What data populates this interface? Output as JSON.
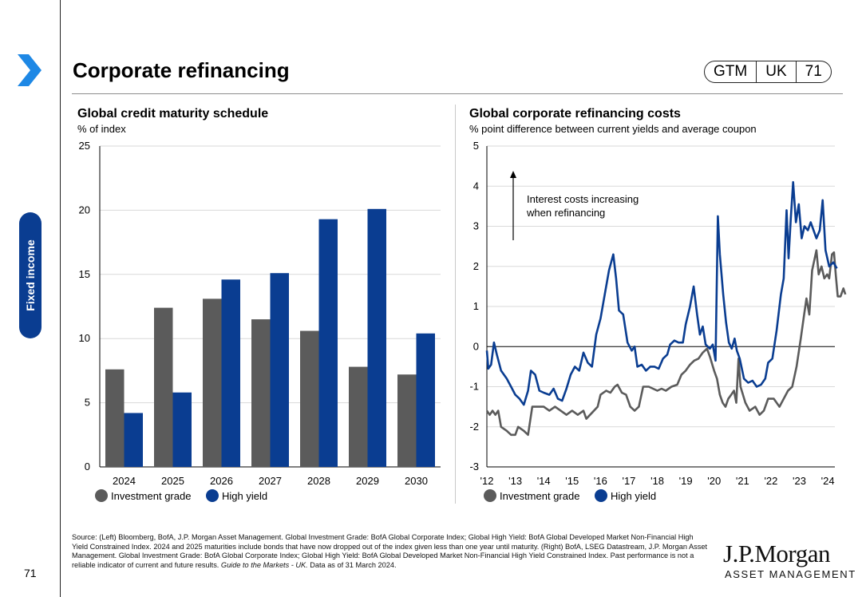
{
  "page": {
    "title": "Corporate refinancing",
    "badge": [
      "GTM",
      "UK",
      "71"
    ],
    "section": "Fixed income",
    "page_number": "71",
    "source_prefix": "Source: (Left) Bloomberg, BofA, J.P. Morgan Asset Management. Global Investment Grade: BofA Global Corporate Index; Global High Yield: BofA Global Developed Market Non-Financial High Yield Constrained Index. 2024 and 2025 maturities include bonds that have now dropped out of the index given less than one year until maturity. (Right) BofA, LSEG Datastream, J.P. Morgan Asset Management. Global Investment Grade: BofA Global Corporate Index; Global High Yield: BofA Global Developed Market Non-Financial High Yield Constrained Index. Past performance is not a reliable indicator of current and future results.",
    "source_guide": "Guide to the Markets - UK.",
    "source_suffix": " Data as of 31 March 2024.",
    "logo_main": "J.P.Morgan",
    "logo_sub": "ASSET MANAGEMENT"
  },
  "colors": {
    "ig": "#5b5b5b",
    "hy": "#0a3d91",
    "accent": "#1e88e5"
  },
  "chart_data": [
    {
      "type": "bar",
      "title": "Global credit maturity schedule",
      "subtitle": "% of index",
      "categories": [
        "2024",
        "2025",
        "2026",
        "2027",
        "2028",
        "2029",
        "2030"
      ],
      "series": [
        {
          "name": "Investment grade",
          "values": [
            7.6,
            12.4,
            13.1,
            11.5,
            10.6,
            7.8,
            7.2
          ]
        },
        {
          "name": "High yield",
          "values": [
            4.2,
            5.8,
            14.6,
            15.1,
            19.3,
            20.1,
            10.4
          ]
        }
      ],
      "ylim": [
        0,
        25
      ],
      "yticks": [
        "0",
        "5",
        "10",
        "15",
        "20",
        "25"
      ],
      "grid": true
    },
    {
      "type": "line",
      "title": "Global corporate refinancing costs",
      "subtitle": "% point difference between current yields and average coupon",
      "xlim": [
        2012,
        2024.25
      ],
      "xticks": [
        {
          "v": 2012,
          "label": "'12"
        },
        {
          "v": 2013,
          "label": "'13"
        },
        {
          "v": 2014,
          "label": "'14"
        },
        {
          "v": 2015,
          "label": "'15"
        },
        {
          "v": 2016,
          "label": "'16"
        },
        {
          "v": 2017,
          "label": "'17"
        },
        {
          "v": 2018,
          "label": "'18"
        },
        {
          "v": 2019,
          "label": "'19"
        },
        {
          "v": 2020,
          "label": "'20"
        },
        {
          "v": 2021,
          "label": "'21"
        },
        {
          "v": 2022,
          "label": "'22"
        },
        {
          "v": 2023,
          "label": "'23"
        },
        {
          "v": 2024,
          "label": "'24"
        }
      ],
      "ylim": [
        -3,
        5
      ],
      "yticks": [
        "-3",
        "-2",
        "-1",
        "0",
        "1",
        "2",
        "3",
        "4",
        "5"
      ],
      "annotation": "Interest costs increasing when refinancing",
      "annotation_lines": [
        "Interest costs increasing",
        "when refinancing"
      ],
      "series": [
        {
          "name": "Investment grade",
          "points": [
            [
              2012.0,
              -1.6
            ],
            [
              2012.1,
              -1.7
            ],
            [
              2012.2,
              -1.6
            ],
            [
              2012.3,
              -1.7
            ],
            [
              2012.4,
              -1.6
            ],
            [
              2012.5,
              -2.0
            ],
            [
              2012.7,
              -2.1
            ],
            [
              2012.85,
              -2.2
            ],
            [
              2013.0,
              -2.2
            ],
            [
              2013.1,
              -2.0
            ],
            [
              2013.3,
              -2.1
            ],
            [
              2013.45,
              -2.2
            ],
            [
              2013.6,
              -1.5
            ],
            [
              2013.8,
              -1.5
            ],
            [
              2014.0,
              -1.5
            ],
            [
              2014.2,
              -1.6
            ],
            [
              2014.4,
              -1.5
            ],
            [
              2014.6,
              -1.6
            ],
            [
              2014.8,
              -1.7
            ],
            [
              2015.0,
              -1.6
            ],
            [
              2015.2,
              -1.7
            ],
            [
              2015.4,
              -1.6
            ],
            [
              2015.5,
              -1.8
            ],
            [
              2015.7,
              -1.65
            ],
            [
              2015.9,
              -1.5
            ],
            [
              2016.0,
              -1.2
            ],
            [
              2016.2,
              -1.1
            ],
            [
              2016.35,
              -1.15
            ],
            [
              2016.5,
              -1.0
            ],
            [
              2016.6,
              -0.95
            ],
            [
              2016.75,
              -1.15
            ],
            [
              2016.9,
              -1.2
            ],
            [
              2017.05,
              -1.5
            ],
            [
              2017.2,
              -1.6
            ],
            [
              2017.35,
              -1.5
            ],
            [
              2017.5,
              -1.0
            ],
            [
              2017.7,
              -1.0
            ],
            [
              2017.85,
              -1.05
            ],
            [
              2018.0,
              -1.1
            ],
            [
              2018.15,
              -1.05
            ],
            [
              2018.3,
              -1.1
            ],
            [
              2018.5,
              -1.0
            ],
            [
              2018.7,
              -0.95
            ],
            [
              2018.85,
              -0.7
            ],
            [
              2019.0,
              -0.6
            ],
            [
              2019.15,
              -0.45
            ],
            [
              2019.3,
              -0.35
            ],
            [
              2019.45,
              -0.3
            ],
            [
              2019.6,
              -0.15
            ],
            [
              2019.75,
              -0.05
            ],
            [
              2019.85,
              -0.25
            ],
            [
              2020.0,
              -0.6
            ],
            [
              2020.1,
              -0.8
            ],
            [
              2020.2,
              -1.2
            ],
            [
              2020.3,
              -1.4
            ],
            [
              2020.4,
              -1.5
            ],
            [
              2020.5,
              -1.3
            ],
            [
              2020.6,
              -1.2
            ],
            [
              2020.7,
              -1.1
            ],
            [
              2020.78,
              -1.4
            ],
            [
              2020.86,
              -0.3
            ],
            [
              2020.93,
              -1.0
            ],
            [
              2021.1,
              -1.4
            ],
            [
              2021.25,
              -1.6
            ],
            [
              2021.45,
              -1.5
            ],
            [
              2021.6,
              -1.7
            ],
            [
              2021.75,
              -1.6
            ],
            [
              2021.9,
              -1.3
            ],
            [
              2022.1,
              -1.3
            ],
            [
              2022.3,
              -1.5
            ],
            [
              2022.45,
              -1.3
            ],
            [
              2022.6,
              -1.1
            ],
            [
              2022.75,
              -1.0
            ],
            [
              2022.9,
              -0.5
            ],
            [
              2023.05,
              0.2
            ],
            [
              2023.15,
              0.7
            ],
            [
              2023.25,
              1.2
            ],
            [
              2023.35,
              0.8
            ],
            [
              2023.45,
              1.9
            ],
            [
              2023.6,
              2.4
            ],
            [
              2023.68,
              1.8
            ],
            [
              2023.78,
              2.0
            ],
            [
              2023.88,
              1.7
            ],
            [
              2023.98,
              1.8
            ],
            [
              2024.05,
              1.7
            ],
            [
              2024.15,
              2.3
            ],
            [
              2024.22,
              2.35
            ],
            [
              2024.28,
              1.8
            ],
            [
              2024.35,
              1.25
            ],
            [
              2024.45,
              1.25
            ],
            [
              2024.55,
              1.45
            ],
            [
              2024.62,
              1.3
            ]
          ]
        },
        {
          "name": "High yield",
          "points": [
            [
              2012.0,
              -0.1
            ],
            [
              2012.05,
              -0.55
            ],
            [
              2012.15,
              -0.45
            ],
            [
              2012.25,
              0.1
            ],
            [
              2012.35,
              -0.2
            ],
            [
              2012.5,
              -0.6
            ],
            [
              2012.7,
              -0.8
            ],
            [
              2012.85,
              -1.0
            ],
            [
              2013.0,
              -1.2
            ],
            [
              2013.15,
              -1.3
            ],
            [
              2013.3,
              -1.45
            ],
            [
              2013.45,
              -1.1
            ],
            [
              2013.55,
              -0.6
            ],
            [
              2013.7,
              -0.7
            ],
            [
              2013.85,
              -1.1
            ],
            [
              2014.0,
              -1.15
            ],
            [
              2014.2,
              -1.2
            ],
            [
              2014.35,
              -1.05
            ],
            [
              2014.5,
              -1.3
            ],
            [
              2014.65,
              -1.35
            ],
            [
              2014.8,
              -1.05
            ],
            [
              2014.95,
              -0.7
            ],
            [
              2015.1,
              -0.5
            ],
            [
              2015.25,
              -0.6
            ],
            [
              2015.4,
              -0.15
            ],
            [
              2015.55,
              -0.4
            ],
            [
              2015.7,
              -0.5
            ],
            [
              2015.85,
              0.3
            ],
            [
              2016.0,
              0.7
            ],
            [
              2016.15,
              1.3
            ],
            [
              2016.3,
              1.9
            ],
            [
              2016.45,
              2.3
            ],
            [
              2016.55,
              1.7
            ],
            [
              2016.65,
              0.9
            ],
            [
              2016.8,
              0.8
            ],
            [
              2016.95,
              0.1
            ],
            [
              2017.1,
              -0.1
            ],
            [
              2017.2,
              0.0
            ],
            [
              2017.3,
              -0.5
            ],
            [
              2017.45,
              -0.45
            ],
            [
              2017.6,
              -0.6
            ],
            [
              2017.75,
              -0.5
            ],
            [
              2017.9,
              -0.5
            ],
            [
              2018.05,
              -0.55
            ],
            [
              2018.2,
              -0.3
            ],
            [
              2018.35,
              -0.2
            ],
            [
              2018.45,
              0.05
            ],
            [
              2018.6,
              0.15
            ],
            [
              2018.75,
              0.1
            ],
            [
              2018.9,
              0.1
            ],
            [
              2019.0,
              0.55
            ],
            [
              2019.15,
              1.0
            ],
            [
              2019.28,
              1.5
            ],
            [
              2019.4,
              0.8
            ],
            [
              2019.5,
              0.3
            ],
            [
              2019.6,
              0.5
            ],
            [
              2019.7,
              0.05
            ],
            [
              2019.85,
              -0.05
            ],
            [
              2019.95,
              0.05
            ],
            [
              2020.05,
              -0.35
            ],
            [
              2020.13,
              3.25
            ],
            [
              2020.2,
              2.3
            ],
            [
              2020.32,
              1.3
            ],
            [
              2020.42,
              0.6
            ],
            [
              2020.52,
              0.1
            ],
            [
              2020.62,
              -0.05
            ],
            [
              2020.72,
              0.2
            ],
            [
              2020.8,
              -0.1
            ],
            [
              2020.9,
              -0.3
            ],
            [
              2021.05,
              -0.8
            ],
            [
              2021.2,
              -0.9
            ],
            [
              2021.35,
              -0.85
            ],
            [
              2021.5,
              -1.0
            ],
            [
              2021.65,
              -0.95
            ],
            [
              2021.8,
              -0.8
            ],
            [
              2021.9,
              -0.4
            ],
            [
              2022.05,
              -0.3
            ],
            [
              2022.2,
              0.4
            ],
            [
              2022.35,
              1.3
            ],
            [
              2022.45,
              1.7
            ],
            [
              2022.55,
              3.4
            ],
            [
              2022.62,
              2.2
            ],
            [
              2022.7,
              3.2
            ],
            [
              2022.78,
              4.1
            ],
            [
              2022.88,
              3.1
            ],
            [
              2022.98,
              3.55
            ],
            [
              2023.08,
              2.7
            ],
            [
              2023.18,
              3.0
            ],
            [
              2023.3,
              2.9
            ],
            [
              2023.4,
              3.1
            ],
            [
              2023.5,
              2.9
            ],
            [
              2023.6,
              2.7
            ],
            [
              2023.72,
              2.9
            ],
            [
              2023.82,
              3.65
            ],
            [
              2023.92,
              2.4
            ],
            [
              2024.05,
              2.0
            ],
            [
              2024.2,
              2.1
            ],
            [
              2024.32,
              1.95
            ]
          ]
        }
      ]
    }
  ]
}
